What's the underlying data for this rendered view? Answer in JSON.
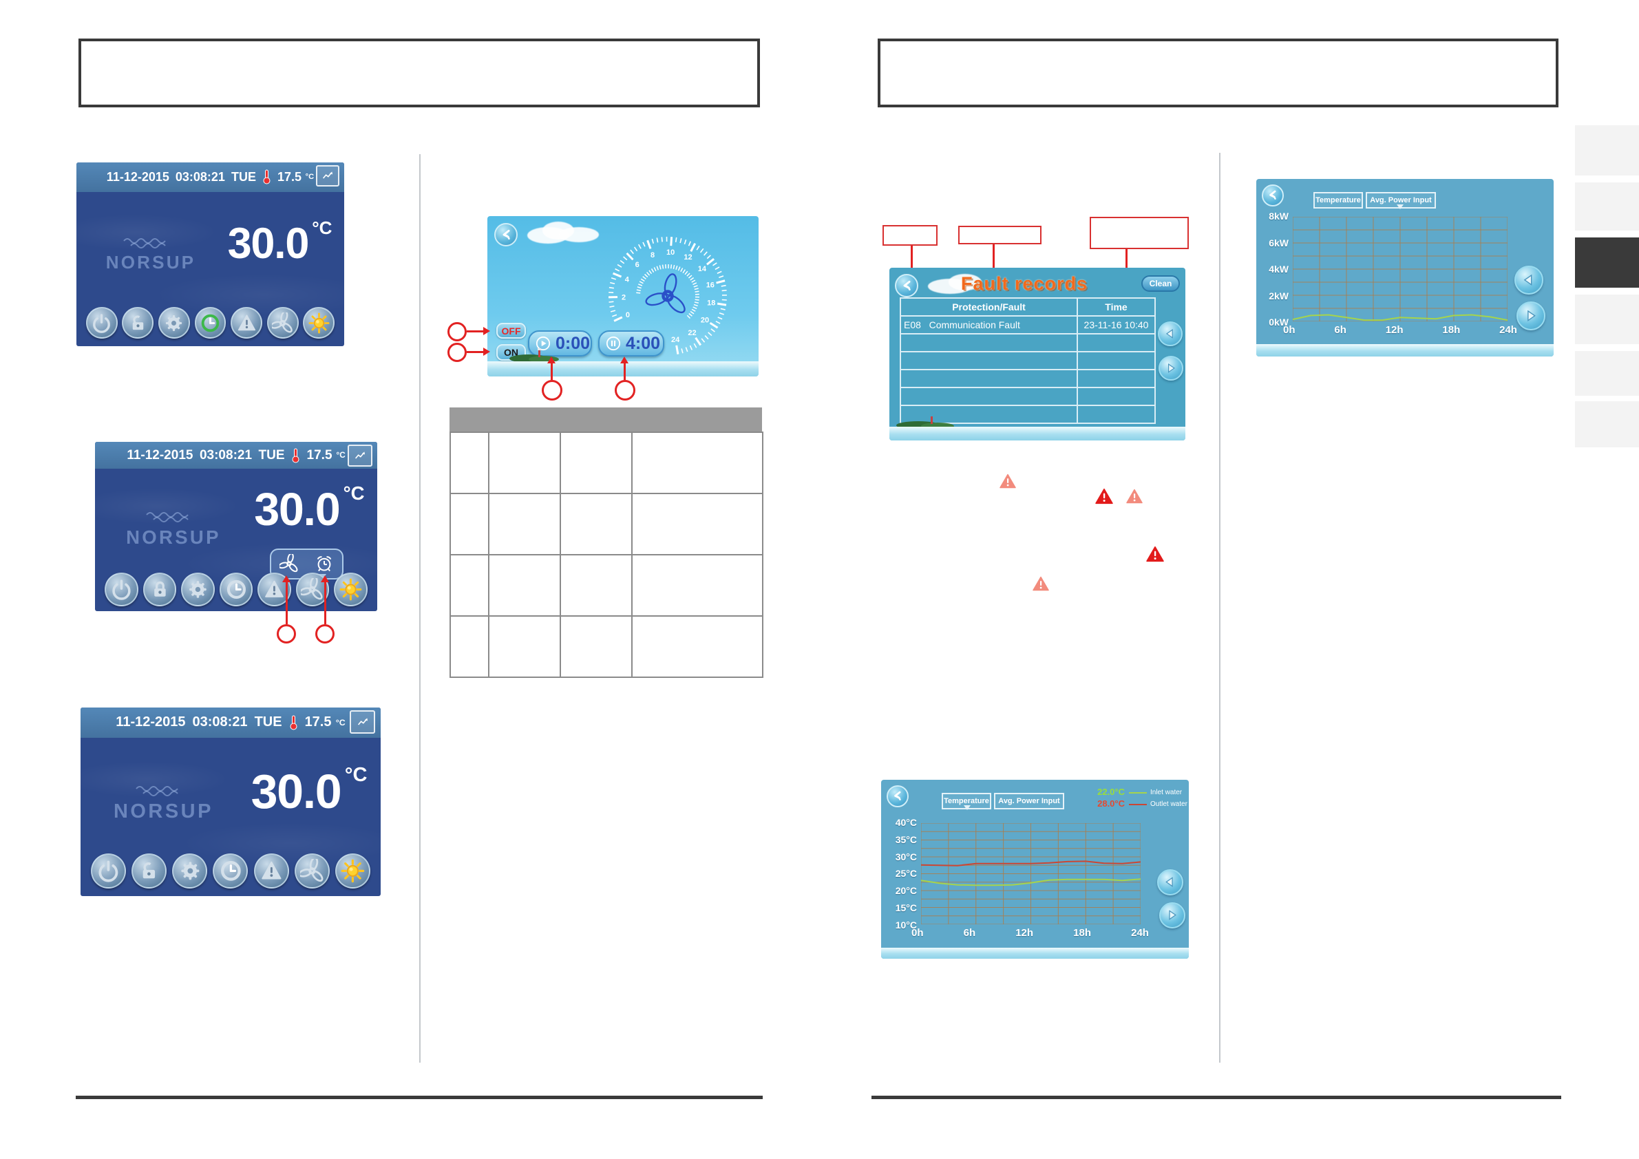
{
  "page": {
    "left_header_box": "",
    "right_header_box": ""
  },
  "status_bar": {
    "date": "11-12-2015",
    "time": "03:08:21",
    "day": "TUE",
    "ambient_temp": "17.5",
    "ambient_unit": "°C"
  },
  "home": {
    "brand": "NORSUP",
    "water_temp": "30.0",
    "water_unit": "°C"
  },
  "timer_screen": {
    "off_label": "OFF",
    "on_label": "ON",
    "timer_on_value": "0:00",
    "timer_off_value": "4:00",
    "dial_numbers": [
      0,
      2,
      4,
      6,
      8,
      10,
      12,
      14,
      16,
      18,
      20,
      22,
      24
    ]
  },
  "fault_screen": {
    "title": "Fault records",
    "clean_label": "Clean",
    "columns": {
      "fault": "Protection/Fault",
      "time": "Time"
    },
    "records": [
      {
        "code": "E08",
        "description": "Communication Fault",
        "time": "23-11-16 10:40"
      }
    ]
  },
  "temp_screen": {
    "tabs": {
      "temperature": "Temperature",
      "power": "Avg. Power Input"
    },
    "legend": {
      "inlet_value": "22.0°C",
      "inlet_label": "Inlet water",
      "outlet_value": "28.0°C",
      "outlet_label": "Outlet water"
    }
  },
  "power_screen": {
    "tabs": {
      "temperature": "Temperature",
      "power": "Avg. Power Input"
    }
  },
  "chart_data": [
    {
      "type": "line",
      "title": "Temperature",
      "x_hours": [
        0,
        2,
        4,
        6,
        8,
        10,
        12,
        14,
        16,
        18,
        20,
        22,
        24
      ],
      "series": [
        {
          "name": "Outlet water",
          "color": "#cc4633",
          "values": [
            27.6,
            27.5,
            27.4,
            28.0,
            28.0,
            28.0,
            28.0,
            28.2,
            28.6,
            28.7,
            28.1,
            28.0,
            28.5
          ]
        },
        {
          "name": "Inlet water",
          "color": "#a6d44c",
          "values": [
            23.0,
            22.2,
            21.7,
            21.6,
            21.6,
            21.7,
            22.3,
            23.1,
            23.3,
            23.3,
            23.3,
            23.0,
            23.4
          ]
        }
      ],
      "ylim": [
        10,
        40
      ],
      "yticks": [
        "40°C",
        "35°C",
        "30°C",
        "25°C",
        "20°C",
        "15°C",
        "10°C"
      ],
      "xticks": [
        "0h",
        "6h",
        "12h",
        "18h",
        "24h"
      ],
      "grid_minor_y": 2.5,
      "grid_x_step_h": 3,
      "legend_position": "top-right",
      "grid": true
    },
    {
      "type": "line",
      "title": "Avg. Power Input",
      "x_hours": [
        0,
        2,
        4,
        6,
        8,
        10,
        12,
        14,
        16,
        18,
        20,
        22,
        24
      ],
      "series": [
        {
          "name": "Avg. Power Input",
          "color": "#a6d44c",
          "values": [
            0.15,
            0.45,
            0.5,
            0.3,
            0.1,
            0.1,
            0.3,
            0.25,
            0.2,
            0.45,
            0.5,
            0.35,
            0.1
          ]
        }
      ],
      "ylim": [
        0,
        8
      ],
      "yticks": [
        "8kW",
        "6kW",
        "4kW",
        "2kW",
        "0kW"
      ],
      "xticks": [
        "0h",
        "6h",
        "12h",
        "18h",
        "24h"
      ],
      "grid_minor_y": 1,
      "grid_x_step_h": 3,
      "legend_position": "none",
      "grid": true
    }
  ]
}
